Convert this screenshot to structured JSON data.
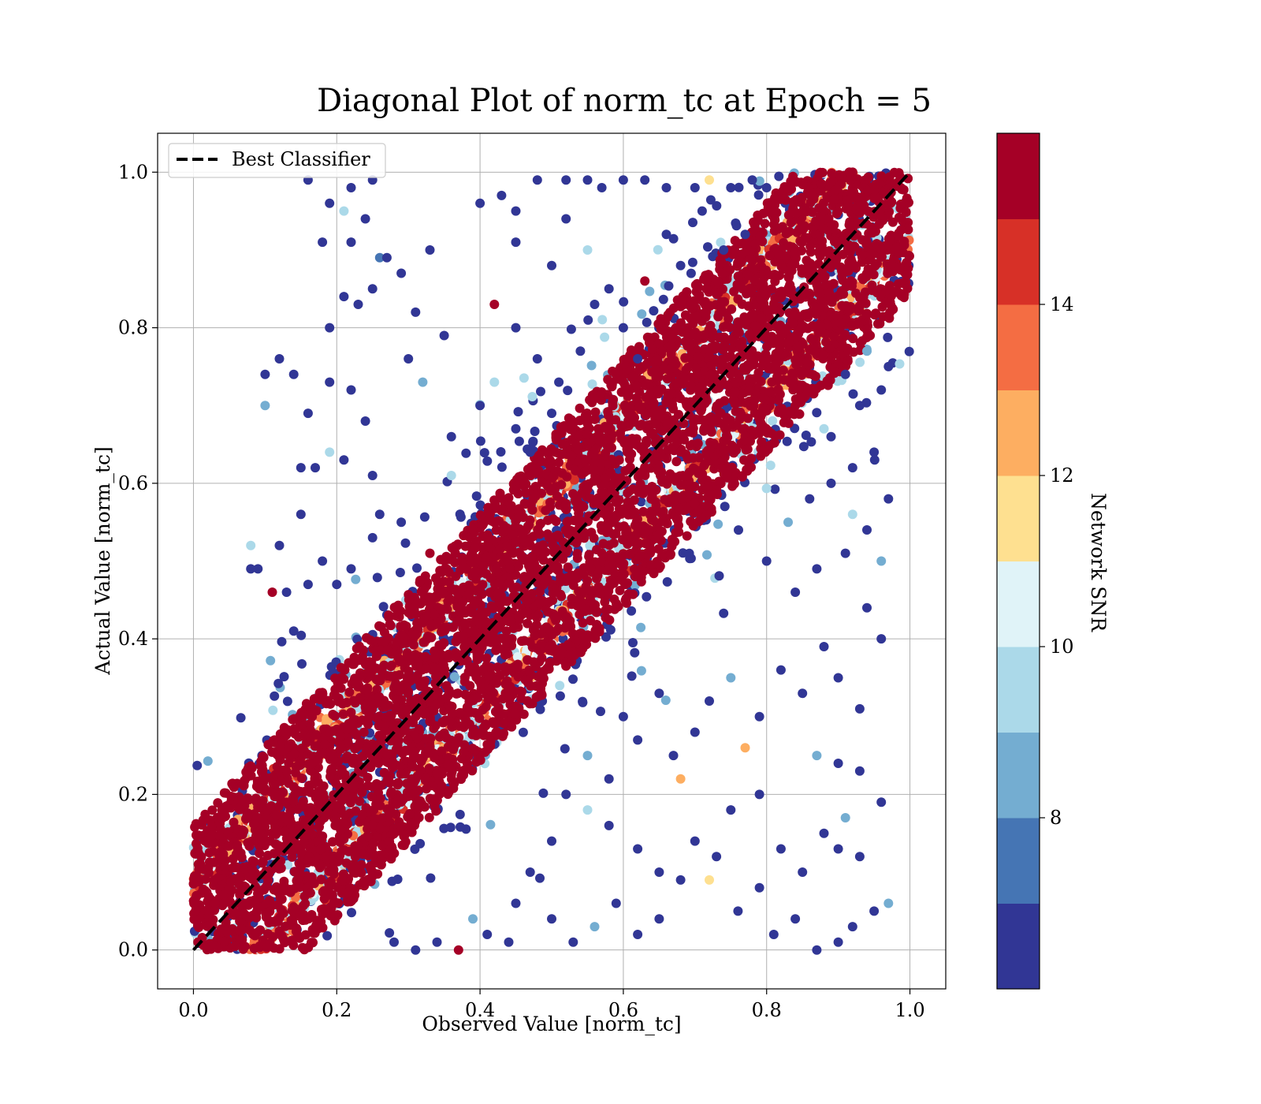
{
  "chart_data": {
    "type": "scatter",
    "title": "Diagonal Plot of norm_tc at Epoch = 5",
    "xlabel": "Observed Value [norm_tc]",
    "ylabel": "Actual Value [norm_tc]",
    "xlim": [
      -0.05,
      1.05
    ],
    "ylim": [
      -0.05,
      1.05
    ],
    "xticks": [
      0.0,
      0.2,
      0.4,
      0.6,
      0.8,
      1.0
    ],
    "yticks": [
      0.0,
      0.2,
      0.4,
      0.6,
      0.8,
      1.0
    ],
    "xtick_labels": [
      "0.0",
      "0.2",
      "0.4",
      "0.6",
      "0.8",
      "1.0"
    ],
    "ytick_labels": [
      "0.0",
      "0.2",
      "0.4",
      "0.6",
      "0.8",
      "1.0"
    ],
    "grid": true,
    "legend": {
      "position": "top-left",
      "entries": [
        {
          "label": "Best Classifier",
          "style": "dashed",
          "color": "#000000"
        }
      ]
    },
    "reference_line": {
      "name": "Best Classifier",
      "x": [
        0,
        1
      ],
      "y": [
        0,
        1
      ]
    },
    "colorbar": {
      "label": "Network SNR",
      "range": [
        6,
        16
      ],
      "ticks": [
        8,
        10,
        12,
        14
      ],
      "tick_labels": [
        "8",
        "10",
        "12",
        "14"
      ],
      "colors": [
        "#313695",
        "#4575b4",
        "#74add1",
        "#abd9e9",
        "#e0f3f8",
        "#fee090",
        "#fdae61",
        "#f46d43",
        "#d73027",
        "#a50026"
      ]
    },
    "scatter_description": "Tens of thousands of points densely clustered along the y = x diagonal, colored by Network SNR; points with SNR above 15 form a band around the diagonal, lower-SNR points scatter farther away.",
    "band_halfwidth_high_snr": 0.08,
    "band_halfwidth_mid_snr": 0.12,
    "outliers_sample": [
      [
        0.16,
        0.99,
        6.5
      ],
      [
        0.19,
        0.96,
        6.5
      ],
      [
        0.22,
        0.98,
        6.5
      ],
      [
        0.25,
        0.99,
        6.5
      ],
      [
        0.21,
        0.95,
        9.5
      ],
      [
        0.18,
        0.91,
        6.5
      ],
      [
        0.22,
        0.91,
        6.5
      ],
      [
        0.24,
        0.94,
        6.5
      ],
      [
        0.26,
        0.89,
        7.5
      ],
      [
        0.27,
        0.89,
        6.5
      ],
      [
        0.12,
        0.76,
        6.5
      ],
      [
        0.1,
        0.74,
        6.5
      ],
      [
        0.14,
        0.74,
        6.5
      ],
      [
        0.1,
        0.7,
        8.5
      ],
      [
        0.16,
        0.69,
        6.5
      ],
      [
        0.19,
        0.73,
        6.5
      ],
      [
        0.22,
        0.72,
        6.5
      ],
      [
        0.24,
        0.68,
        6.5
      ],
      [
        0.19,
        0.8,
        6.5
      ],
      [
        0.21,
        0.84,
        6.5
      ],
      [
        0.23,
        0.83,
        6.5
      ],
      [
        0.25,
        0.85,
        6.5
      ],
      [
        0.29,
        0.87,
        6.5
      ],
      [
        0.31,
        0.82,
        6.5
      ],
      [
        0.33,
        0.9,
        6.5
      ],
      [
        0.3,
        0.76,
        6.5
      ],
      [
        0.32,
        0.73,
        8.5
      ],
      [
        0.35,
        0.79,
        6.5
      ],
      [
        0.36,
        0.66,
        6.5
      ],
      [
        0.15,
        0.62,
        6.5
      ],
      [
        0.17,
        0.62,
        6.5
      ],
      [
        0.19,
        0.64,
        9.5
      ],
      [
        0.21,
        0.63,
        6.5
      ],
      [
        0.25,
        0.61,
        6.5
      ],
      [
        0.15,
        0.56,
        6.5
      ],
      [
        0.12,
        0.52,
        6.5
      ],
      [
        0.09,
        0.49,
        6.5
      ],
      [
        0.08,
        0.49,
        6.5
      ],
      [
        0.08,
        0.52,
        9.5
      ],
      [
        0.11,
        0.46,
        15.5
      ],
      [
        0.13,
        0.46,
        6.5
      ],
      [
        0.14,
        0.41,
        6.5
      ],
      [
        0.16,
        0.47,
        6.5
      ],
      [
        0.18,
        0.5,
        6.5
      ],
      [
        0.2,
        0.47,
        6.5
      ],
      [
        0.22,
        0.49,
        6.5
      ],
      [
        0.25,
        0.53,
        6.5
      ],
      [
        0.26,
        0.56,
        6.5
      ],
      [
        0.29,
        0.55,
        6.5
      ],
      [
        0.33,
        0.51,
        15.5
      ],
      [
        0.4,
        0.96,
        6.5
      ],
      [
        0.43,
        0.97,
        6.5
      ],
      [
        0.45,
        0.95,
        6.5
      ],
      [
        0.48,
        0.99,
        6.5
      ],
      [
        0.52,
        0.99,
        6.5
      ],
      [
        0.55,
        0.99,
        6.5
      ],
      [
        0.57,
        0.98,
        6.5
      ],
      [
        0.6,
        0.99,
        6.5
      ],
      [
        0.63,
        0.99,
        6.5
      ],
      [
        0.66,
        0.98,
        6.5
      ],
      [
        0.7,
        0.98,
        6.5
      ],
      [
        0.72,
        0.99,
        11.5
      ],
      [
        0.75,
        0.98,
        6.5
      ],
      [
        0.78,
        0.99,
        6.5
      ],
      [
        0.8,
        0.98,
        6.5
      ],
      [
        0.45,
        0.91,
        6.5
      ],
      [
        0.5,
        0.88,
        6.5
      ],
      [
        0.55,
        0.9,
        9.5
      ],
      [
        0.58,
        0.85,
        6.5
      ],
      [
        0.63,
        0.86,
        15.5
      ],
      [
        0.66,
        0.92,
        6.5
      ],
      [
        0.68,
        0.88,
        6.5
      ],
      [
        0.71,
        0.95,
        6.5
      ],
      [
        0.74,
        0.9,
        6.5
      ],
      [
        0.77,
        0.92,
        6.5
      ],
      [
        0.42,
        0.83,
        15.5
      ],
      [
        0.45,
        0.8,
        6.5
      ],
      [
        0.48,
        0.76,
        6.5
      ],
      [
        0.51,
        0.73,
        6.5
      ],
      [
        0.54,
        0.77,
        6.5
      ],
      [
        0.4,
        0.7,
        6.5
      ],
      [
        0.42,
        0.73,
        9.5
      ],
      [
        0.45,
        0.67,
        6.5
      ],
      [
        0.47,
        0.64,
        6.5
      ],
      [
        0.5,
        0.69,
        6.5
      ],
      [
        0.6,
        0.8,
        6.5
      ],
      [
        0.62,
        0.76,
        6.5
      ],
      [
        0.52,
        0.94,
        6.5
      ],
      [
        0.56,
        0.83,
        6.5
      ],
      [
        0.36,
        0.61,
        9.5
      ],
      [
        0.58,
        0.16,
        6.5
      ],
      [
        0.62,
        0.13,
        6.5
      ],
      [
        0.65,
        0.1,
        6.5
      ],
      [
        0.68,
        0.09,
        6.5
      ],
      [
        0.7,
        0.14,
        6.5
      ],
      [
        0.73,
        0.12,
        6.5
      ],
      [
        0.76,
        0.05,
        6.5
      ],
      [
        0.79,
        0.08,
        6.5
      ],
      [
        0.81,
        0.02,
        6.5
      ],
      [
        0.84,
        0.04,
        6.5
      ],
      [
        0.87,
        0.0,
        6.5
      ],
      [
        0.9,
        0.01,
        6.5
      ],
      [
        0.92,
        0.03,
        6.5
      ],
      [
        0.95,
        0.05,
        6.5
      ],
      [
        0.97,
        0.06,
        8.5
      ],
      [
        0.68,
        0.22,
        12.5
      ],
      [
        0.72,
        0.09,
        11.5
      ],
      [
        0.77,
        0.26,
        12.5
      ],
      [
        0.75,
        0.18,
        6.5
      ],
      [
        0.79,
        0.2,
        6.5
      ],
      [
        0.82,
        0.13,
        6.5
      ],
      [
        0.85,
        0.1,
        6.5
      ],
      [
        0.88,
        0.15,
        6.5
      ],
      [
        0.9,
        0.13,
        6.5
      ],
      [
        0.93,
        0.12,
        6.5
      ],
      [
        0.87,
        0.25,
        8.5
      ],
      [
        0.9,
        0.24,
        6.5
      ],
      [
        0.93,
        0.23,
        6.5
      ],
      [
        0.96,
        0.19,
        6.5
      ],
      [
        0.91,
        0.17,
        8.5
      ],
      [
        0.72,
        0.32,
        6.5
      ],
      [
        0.75,
        0.35,
        8.5
      ],
      [
        0.79,
        0.3,
        6.5
      ],
      [
        0.82,
        0.36,
        6.5
      ],
      [
        0.85,
        0.33,
        6.5
      ],
      [
        0.88,
        0.39,
        6.5
      ],
      [
        0.9,
        0.35,
        6.5
      ],
      [
        0.93,
        0.31,
        6.5
      ],
      [
        0.96,
        0.4,
        6.5
      ],
      [
        0.94,
        0.44,
        6.5
      ],
      [
        0.84,
        0.46,
        6.5
      ],
      [
        0.87,
        0.49,
        6.5
      ],
      [
        0.91,
        0.51,
        6.5
      ],
      [
        0.94,
        0.54,
        6.5
      ],
      [
        0.96,
        0.5,
        8.5
      ],
      [
        0.8,
        0.5,
        6.5
      ],
      [
        0.83,
        0.55,
        8.5
      ],
      [
        0.86,
        0.58,
        6.5
      ],
      [
        0.89,
        0.6,
        6.5
      ],
      [
        0.92,
        0.56,
        9.5
      ],
      [
        0.95,
        0.64,
        6.5
      ],
      [
        0.97,
        0.58,
        6.5
      ],
      [
        0.92,
        0.62,
        6.5
      ],
      [
        0.89,
        0.66,
        6.5
      ],
      [
        0.93,
        0.7,
        6.5
      ],
      [
        0.96,
        0.72,
        6.5
      ],
      [
        0.94,
        0.77,
        8.5
      ],
      [
        0.97,
        0.75,
        6.5
      ],
      [
        0.91,
        0.74,
        6.5
      ],
      [
        0.88,
        0.67,
        9.5
      ],
      [
        0.6,
        0.3,
        6.5
      ],
      [
        0.62,
        0.27,
        6.5
      ],
      [
        0.65,
        0.33,
        6.5
      ],
      [
        0.67,
        0.25,
        6.5
      ],
      [
        0.7,
        0.28,
        6.5
      ],
      [
        0.55,
        0.25,
        8.5
      ],
      [
        0.58,
        0.22,
        6.5
      ],
      [
        0.52,
        0.2,
        6.5
      ],
      [
        0.55,
        0.18,
        9.5
      ],
      [
        0.5,
        0.14,
        6.5
      ],
      [
        0.47,
        0.1,
        6.5
      ],
      [
        0.45,
        0.06,
        6.5
      ],
      [
        0.5,
        0.04,
        6.5
      ],
      [
        0.53,
        0.01,
        6.5
      ],
      [
        0.56,
        0.03,
        8.5
      ],
      [
        0.59,
        0.06,
        6.5
      ],
      [
        0.62,
        0.02,
        6.5
      ],
      [
        0.65,
        0.04,
        6.5
      ],
      [
        0.41,
        0.02,
        6.5
      ],
      [
        0.44,
        0.01,
        6.5
      ],
      [
        0.37,
        0.0,
        15.5
      ],
      [
        0.34,
        0.01,
        6.5
      ],
      [
        0.31,
        0.0,
        6.5
      ],
      [
        0.28,
        0.01,
        6.5
      ],
      [
        0.39,
        0.04,
        8.5
      ]
    ]
  }
}
